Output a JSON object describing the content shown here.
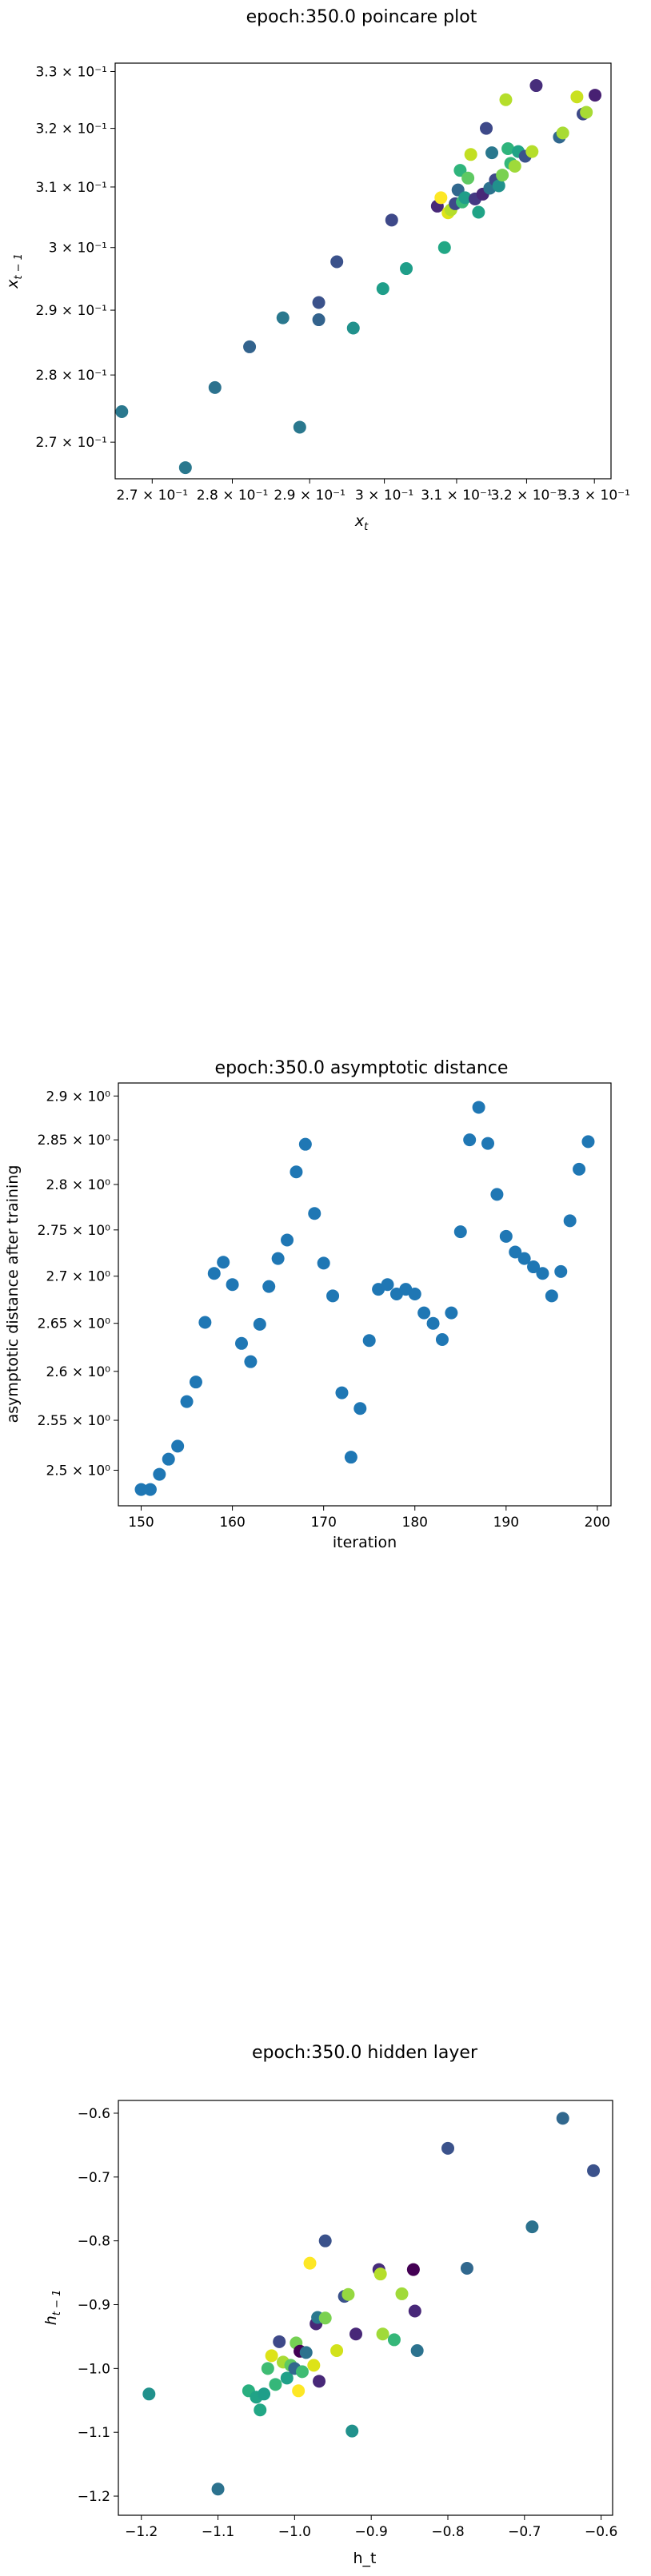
{
  "chart_data": [
    {
      "type": "scatter",
      "title": "epoch:350.0 poincare plot",
      "xlabel": "x_t",
      "ylabel": "x_{t-1}",
      "xscale": "log",
      "yscale": "log",
      "xlim": [
        0.2655,
        0.3325
      ],
      "ylim": [
        0.2647,
        0.3315
      ],
      "grid": false,
      "x_tick_labels": [
        "2.7 × 10⁻¹",
        "2.8 × 10⁻¹",
        "2.9 × 10⁻¹",
        "3 × 10⁻¹",
        "3.1 × 10⁻¹",
        "3.2 × 10⁻¹",
        "3.3 × 10⁻¹"
      ],
      "x_tick_values": [
        0.27,
        0.28,
        0.29,
        0.3,
        0.31,
        0.32,
        0.33
      ],
      "y_tick_labels": [
        "2.7 × 10⁻¹",
        "2.8 × 10⁻¹",
        "2.9 × 10⁻¹",
        "3 × 10⁻¹",
        "3.1 × 10⁻¹",
        "3.2 × 10⁻¹",
        "3.3 × 10⁻¹"
      ],
      "y_tick_values": [
        0.27,
        0.28,
        0.29,
        0.3,
        0.31,
        0.32,
        0.33
      ],
      "points": [
        {
          "x": 0.2663,
          "y": 0.2745,
          "color": "#2a788e"
        },
        {
          "x": 0.2741,
          "y": 0.2663,
          "color": "#2a788e"
        },
        {
          "x": 0.2778,
          "y": 0.2781,
          "color": "#2c728e"
        },
        {
          "x": 0.2822,
          "y": 0.2843,
          "color": "#33638d"
        },
        {
          "x": 0.2865,
          "y": 0.2888,
          "color": "#2a788e"
        },
        {
          "x": 0.2887,
          "y": 0.2722,
          "color": "#2a788e"
        },
        {
          "x": 0.2912,
          "y": 0.2912,
          "color": "#3b528b"
        },
        {
          "x": 0.2912,
          "y": 0.2885,
          "color": "#33638d"
        },
        {
          "x": 0.2936,
          "y": 0.2977,
          "color": "#3b528b"
        },
        {
          "x": 0.2958,
          "y": 0.2872,
          "color": "#21918c"
        },
        {
          "x": 0.2998,
          "y": 0.2934,
          "color": "#1f9e89"
        },
        {
          "x": 0.301,
          "y": 0.3045,
          "color": "#3e4989"
        },
        {
          "x": 0.303,
          "y": 0.2966,
          "color": "#1f9e89"
        },
        {
          "x": 0.3073,
          "y": 0.3068,
          "color": "#482878"
        },
        {
          "x": 0.3078,
          "y": 0.3082,
          "color": "#fde725"
        },
        {
          "x": 0.3083,
          "y": 0.3,
          "color": "#22a785"
        },
        {
          "x": 0.3088,
          "y": 0.3057,
          "color": "#dde318"
        },
        {
          "x": 0.3092,
          "y": 0.3062,
          "color": "#b5de2b"
        },
        {
          "x": 0.3098,
          "y": 0.3072,
          "color": "#3e4989"
        },
        {
          "x": 0.3102,
          "y": 0.3095,
          "color": "#31688e"
        },
        {
          "x": 0.3105,
          "y": 0.3128,
          "color": "#2fb47c"
        },
        {
          "x": 0.3108,
          "y": 0.3075,
          "color": "#38b977"
        },
        {
          "x": 0.3112,
          "y": 0.3082,
          "color": "#1f9e89"
        },
        {
          "x": 0.3116,
          "y": 0.3115,
          "color": "#5ec962"
        },
        {
          "x": 0.312,
          "y": 0.3155,
          "color": "#c2df23"
        },
        {
          "x": 0.3126,
          "y": 0.308,
          "color": "#443983"
        },
        {
          "x": 0.3131,
          "y": 0.3058,
          "color": "#20a386"
        },
        {
          "x": 0.3137,
          "y": 0.3088,
          "color": "#482878"
        },
        {
          "x": 0.3142,
          "y": 0.32,
          "color": "#3e4989"
        },
        {
          "x": 0.3147,
          "y": 0.3098,
          "color": "#2c728e"
        },
        {
          "x": 0.315,
          "y": 0.3158,
          "color": "#2a788e"
        },
        {
          "x": 0.3155,
          "y": 0.3112,
          "color": "#3e4989"
        },
        {
          "x": 0.316,
          "y": 0.3102,
          "color": "#21918c"
        },
        {
          "x": 0.3165,
          "y": 0.312,
          "color": "#7ad151"
        },
        {
          "x": 0.317,
          "y": 0.325,
          "color": "#b5de2b"
        },
        {
          "x": 0.3173,
          "y": 0.3165,
          "color": "#2fb47c"
        },
        {
          "x": 0.3177,
          "y": 0.314,
          "color": "#35b779"
        },
        {
          "x": 0.3183,
          "y": 0.3135,
          "color": "#9fda3a"
        },
        {
          "x": 0.3188,
          "y": 0.316,
          "color": "#20a386"
        },
        {
          "x": 0.3198,
          "y": 0.3152,
          "color": "#3b528b"
        },
        {
          "x": 0.3208,
          "y": 0.316,
          "color": "#b5de2b"
        },
        {
          "x": 0.3214,
          "y": 0.3275,
          "color": "#472d7b"
        },
        {
          "x": 0.3248,
          "y": 0.3185,
          "color": "#31688e"
        },
        {
          "x": 0.3253,
          "y": 0.3192,
          "color": "#a8db34"
        },
        {
          "x": 0.3274,
          "y": 0.3255,
          "color": "#cae11f"
        },
        {
          "x": 0.3283,
          "y": 0.3225,
          "color": "#3e4989"
        },
        {
          "x": 0.3288,
          "y": 0.3228,
          "color": "#a8db34"
        },
        {
          "x": 0.3301,
          "y": 0.3258,
          "color": "#482173"
        }
      ]
    },
    {
      "type": "scatter",
      "title": "epoch:350.0 asymptotic distance",
      "xlabel": "iteration",
      "ylabel": "asymptotic distance after training",
      "yscale": "log",
      "xlim": [
        147.5,
        201.5
      ],
      "ylim": [
        2.465,
        2.915
      ],
      "grid": false,
      "x_tick_values": [
        150,
        160,
        170,
        180,
        190,
        200
      ],
      "x_tick_labels": [
        "150",
        "160",
        "170",
        "180",
        "190",
        "200"
      ],
      "y_tick_values": [
        2.5,
        2.55,
        2.6,
        2.65,
        2.7,
        2.75,
        2.8,
        2.85,
        2.9
      ],
      "y_tick_labels": [
        "2.5 × 10⁰",
        "2.55 × 10⁰",
        "2.6 × 10⁰",
        "2.65 × 10⁰",
        "2.7 × 10⁰",
        "2.75 × 10⁰",
        "2.8 × 10⁰",
        "2.85 × 10⁰",
        "2.9 × 10⁰"
      ],
      "point_color": "#1f77b4",
      "points": [
        {
          "x": 150,
          "y": 2.481
        },
        {
          "x": 151,
          "y": 2.481
        },
        {
          "x": 152,
          "y": 2.496
        },
        {
          "x": 153,
          "y": 2.511
        },
        {
          "x": 154,
          "y": 2.524
        },
        {
          "x": 155,
          "y": 2.569
        },
        {
          "x": 156,
          "y": 2.589
        },
        {
          "x": 157,
          "y": 2.651
        },
        {
          "x": 158,
          "y": 2.703
        },
        {
          "x": 159,
          "y": 2.715
        },
        {
          "x": 160,
          "y": 2.691
        },
        {
          "x": 161,
          "y": 2.629
        },
        {
          "x": 162,
          "y": 2.61
        },
        {
          "x": 163,
          "y": 2.649
        },
        {
          "x": 164,
          "y": 2.689
        },
        {
          "x": 165,
          "y": 2.719
        },
        {
          "x": 166,
          "y": 2.739
        },
        {
          "x": 167,
          "y": 2.814
        },
        {
          "x": 168,
          "y": 2.845
        },
        {
          "x": 169,
          "y": 2.768
        },
        {
          "x": 170,
          "y": 2.714
        },
        {
          "x": 171,
          "y": 2.679
        },
        {
          "x": 172,
          "y": 2.578
        },
        {
          "x": 173,
          "y": 2.513
        },
        {
          "x": 174,
          "y": 2.562
        },
        {
          "x": 175,
          "y": 2.632
        },
        {
          "x": 176,
          "y": 2.686
        },
        {
          "x": 177,
          "y": 2.691
        },
        {
          "x": 178,
          "y": 2.681
        },
        {
          "x": 179,
          "y": 2.686
        },
        {
          "x": 180,
          "y": 2.681
        },
        {
          "x": 181,
          "y": 2.661
        },
        {
          "x": 182,
          "y": 2.65
        },
        {
          "x": 183,
          "y": 2.633
        },
        {
          "x": 184,
          "y": 2.661
        },
        {
          "x": 185,
          "y": 2.748
        },
        {
          "x": 186,
          "y": 2.85
        },
        {
          "x": 187,
          "y": 2.887
        },
        {
          "x": 188,
          "y": 2.846
        },
        {
          "x": 189,
          "y": 2.789
        },
        {
          "x": 190,
          "y": 2.743
        },
        {
          "x": 191,
          "y": 2.726
        },
        {
          "x": 192,
          "y": 2.719
        },
        {
          "x": 193,
          "y": 2.71
        },
        {
          "x": 194,
          "y": 2.703
        },
        {
          "x": 195,
          "y": 2.679
        },
        {
          "x": 196,
          "y": 2.705
        },
        {
          "x": 197,
          "y": 2.76
        },
        {
          "x": 198,
          "y": 2.817
        },
        {
          "x": 199,
          "y": 2.848
        }
      ]
    },
    {
      "type": "scatter",
      "title": "epoch:350.0 hidden layer",
      "xlabel": "h_t",
      "ylabel": "h_{t-1}",
      "xlim": [
        -1.23,
        -0.585
      ],
      "ylim": [
        -1.23,
        -0.58
      ],
      "grid": false,
      "x_tick_values": [
        -1.2,
        -1.1,
        -1.0,
        -0.9,
        -0.8,
        -0.7,
        -0.6
      ],
      "x_tick_labels": [
        "−1.2",
        "−1.1",
        "−1.0",
        "−0.9",
        "−0.8",
        "−0.7",
        "−0.6"
      ],
      "y_tick_values": [
        -0.6,
        -0.7,
        -0.8,
        -0.9,
        -1.0,
        -1.1,
        -1.2
      ],
      "y_tick_labels": [
        "−0.6",
        "−0.7",
        "−0.8",
        "−0.9",
        "−1.0",
        "−1.1",
        "−1.2"
      ],
      "points": [
        {
          "x": -1.19,
          "y": -1.04,
          "color": "#21918c"
        },
        {
          "x": -1.1,
          "y": -1.189,
          "color": "#2c728e"
        },
        {
          "x": -1.06,
          "y": -1.035,
          "color": "#29af7f"
        },
        {
          "x": -1.05,
          "y": -1.045,
          "color": "#20a386"
        },
        {
          "x": -1.045,
          "y": -1.065,
          "color": "#22a785"
        },
        {
          "x": -1.04,
          "y": -1.04,
          "color": "#1f9e89"
        },
        {
          "x": -1.035,
          "y": -1.0,
          "color": "#3fbc73"
        },
        {
          "x": -1.03,
          "y": -0.98,
          "color": "#dde318"
        },
        {
          "x": -1.025,
          "y": -1.025,
          "color": "#35b779"
        },
        {
          "x": -1.02,
          "y": -0.958,
          "color": "#3e4989"
        },
        {
          "x": -1.015,
          "y": -0.99,
          "color": "#a8db34"
        },
        {
          "x": -1.01,
          "y": -1.015,
          "color": "#1fa088"
        },
        {
          "x": -1.005,
          "y": -0.995,
          "color": "#5ec962"
        },
        {
          "x": -1.0,
          "y": -1.0,
          "color": "#31688e"
        },
        {
          "x": -0.998,
          "y": -0.96,
          "color": "#75d054"
        },
        {
          "x": -0.995,
          "y": -1.035,
          "color": "#fde725"
        },
        {
          "x": -0.993,
          "y": -0.973,
          "color": "#440154"
        },
        {
          "x": -0.99,
          "y": -1.005,
          "color": "#3fbc73"
        },
        {
          "x": -0.985,
          "y": -0.975,
          "color": "#2c728e"
        },
        {
          "x": -0.98,
          "y": -0.835,
          "color": "#fde725"
        },
        {
          "x": -0.975,
          "y": -0.995,
          "color": "#dde318"
        },
        {
          "x": -0.972,
          "y": -0.93,
          "color": "#482878"
        },
        {
          "x": -0.97,
          "y": -0.92,
          "color": "#2a788e"
        },
        {
          "x": -0.968,
          "y": -1.02,
          "color": "#482878"
        },
        {
          "x": -0.96,
          "y": -0.921,
          "color": "#7ad151"
        },
        {
          "x": -0.96,
          "y": -0.8,
          "color": "#3b528b"
        },
        {
          "x": -0.945,
          "y": -0.972,
          "color": "#d2e21b"
        },
        {
          "x": -0.935,
          "y": -0.887,
          "color": "#3b528b"
        },
        {
          "x": -0.93,
          "y": -0.884,
          "color": "#95d840"
        },
        {
          "x": -0.925,
          "y": -1.098,
          "color": "#21918c"
        },
        {
          "x": -0.92,
          "y": -0.946,
          "color": "#482878"
        },
        {
          "x": -0.89,
          "y": -0.845,
          "color": "#472d7b"
        },
        {
          "x": -0.888,
          "y": -0.852,
          "color": "#b5de2b"
        },
        {
          "x": -0.885,
          "y": -0.946,
          "color": "#a0da39"
        },
        {
          "x": -0.87,
          "y": -0.955,
          "color": "#35b779"
        },
        {
          "x": -0.86,
          "y": -0.883,
          "color": "#a0da39"
        },
        {
          "x": -0.845,
          "y": -0.845,
          "color": "#440154"
        },
        {
          "x": -0.843,
          "y": -0.91,
          "color": "#482878"
        },
        {
          "x": -0.84,
          "y": -0.972,
          "color": "#2c728e"
        },
        {
          "x": -0.8,
          "y": -0.655,
          "color": "#3b528b"
        },
        {
          "x": -0.775,
          "y": -0.843,
          "color": "#31688e"
        },
        {
          "x": -0.69,
          "y": -0.778,
          "color": "#2c728e"
        },
        {
          "x": -0.65,
          "y": -0.608,
          "color": "#31688e"
        },
        {
          "x": -0.61,
          "y": -0.69,
          "color": "#3b528b"
        }
      ]
    }
  ]
}
